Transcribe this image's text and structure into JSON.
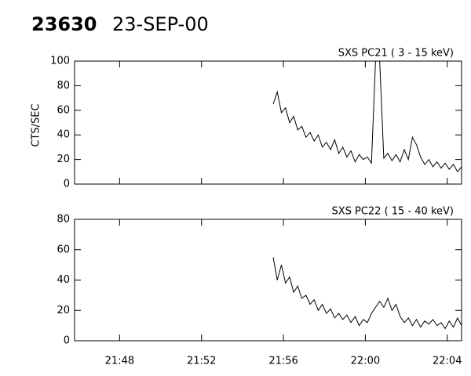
{
  "chart_data": [
    {
      "type": "line",
      "title": "23630",
      "subtitle": "23-SEP-00",
      "ylabel": "CTS/SEC",
      "x": [
        55.5,
        55.7,
        55.9,
        56.1,
        56.3,
        56.5,
        56.7,
        56.9,
        57.1,
        57.3,
        57.5,
        57.7,
        57.9,
        58.1,
        58.3,
        58.5,
        58.7,
        58.9,
        59.1,
        59.3,
        59.5,
        59.7,
        59.9,
        60.1,
        60.3,
        60.5,
        60.7,
        60.9,
        61.1,
        61.3,
        61.5,
        61.7,
        61.9,
        62.1,
        62.3,
        62.5,
        62.7,
        62.9,
        63.1,
        63.3,
        63.5,
        63.7,
        63.9,
        64.1,
        64.3,
        64.5,
        64.7
      ],
      "series": [
        {
          "name": "SXS PC21  (  3 - 15 keV)",
          "color": "#000000",
          "values": [
            65,
            75,
            58,
            62,
            50,
            55,
            44,
            47,
            38,
            42,
            35,
            40,
            30,
            34,
            28,
            36,
            25,
            30,
            22,
            27,
            18,
            24,
            20,
            22,
            17,
            100,
            100,
            21,
            25,
            19,
            24,
            18,
            28,
            20,
            38,
            32,
            22,
            16,
            20,
            14,
            18,
            13,
            17,
            12,
            16,
            10,
            14
          ]
        }
      ],
      "xlim": [
        45.8,
        64.7
      ],
      "ylim": [
        0,
        100
      ],
      "yticks": [
        0,
        20,
        40,
        60,
        80,
        100
      ]
    },
    {
      "type": "line",
      "x": [
        55.5,
        55.7,
        55.9,
        56.1,
        56.3,
        56.5,
        56.7,
        56.9,
        57.1,
        57.3,
        57.5,
        57.7,
        57.9,
        58.1,
        58.3,
        58.5,
        58.7,
        58.9,
        59.1,
        59.3,
        59.5,
        59.7,
        59.9,
        60.1,
        60.3,
        60.5,
        60.7,
        60.9,
        61.1,
        61.3,
        61.5,
        61.7,
        61.9,
        62.1,
        62.3,
        62.5,
        62.7,
        62.9,
        63.1,
        63.3,
        63.5,
        63.7,
        63.9,
        64.1,
        64.3,
        64.5,
        64.7
      ],
      "series": [
        {
          "name": "SXS PC22  ( 15 - 40 keV)",
          "color": "#000000",
          "values": [
            55,
            40,
            50,
            38,
            42,
            32,
            36,
            28,
            30,
            24,
            27,
            20,
            24,
            18,
            21,
            15,
            18,
            14,
            17,
            12,
            16,
            10,
            14,
            12,
            18,
            22,
            26,
            22,
            28,
            20,
            24,
            16,
            12,
            15,
            10,
            14,
            9,
            13,
            11,
            14,
            10,
            12,
            8,
            13,
            9,
            15,
            10
          ]
        }
      ],
      "xlim": [
        45.8,
        64.7
      ],
      "ylim": [
        0,
        80
      ],
      "yticks": [
        0,
        20,
        40,
        60,
        80
      ],
      "xticks": [
        {
          "value": 48,
          "label": "21:48"
        },
        {
          "value": 52,
          "label": "21:52"
        },
        {
          "value": 56,
          "label": "21:56"
        },
        {
          "value": 60,
          "label": "22:00"
        },
        {
          "value": 64,
          "label": "22:04"
        }
      ]
    }
  ]
}
